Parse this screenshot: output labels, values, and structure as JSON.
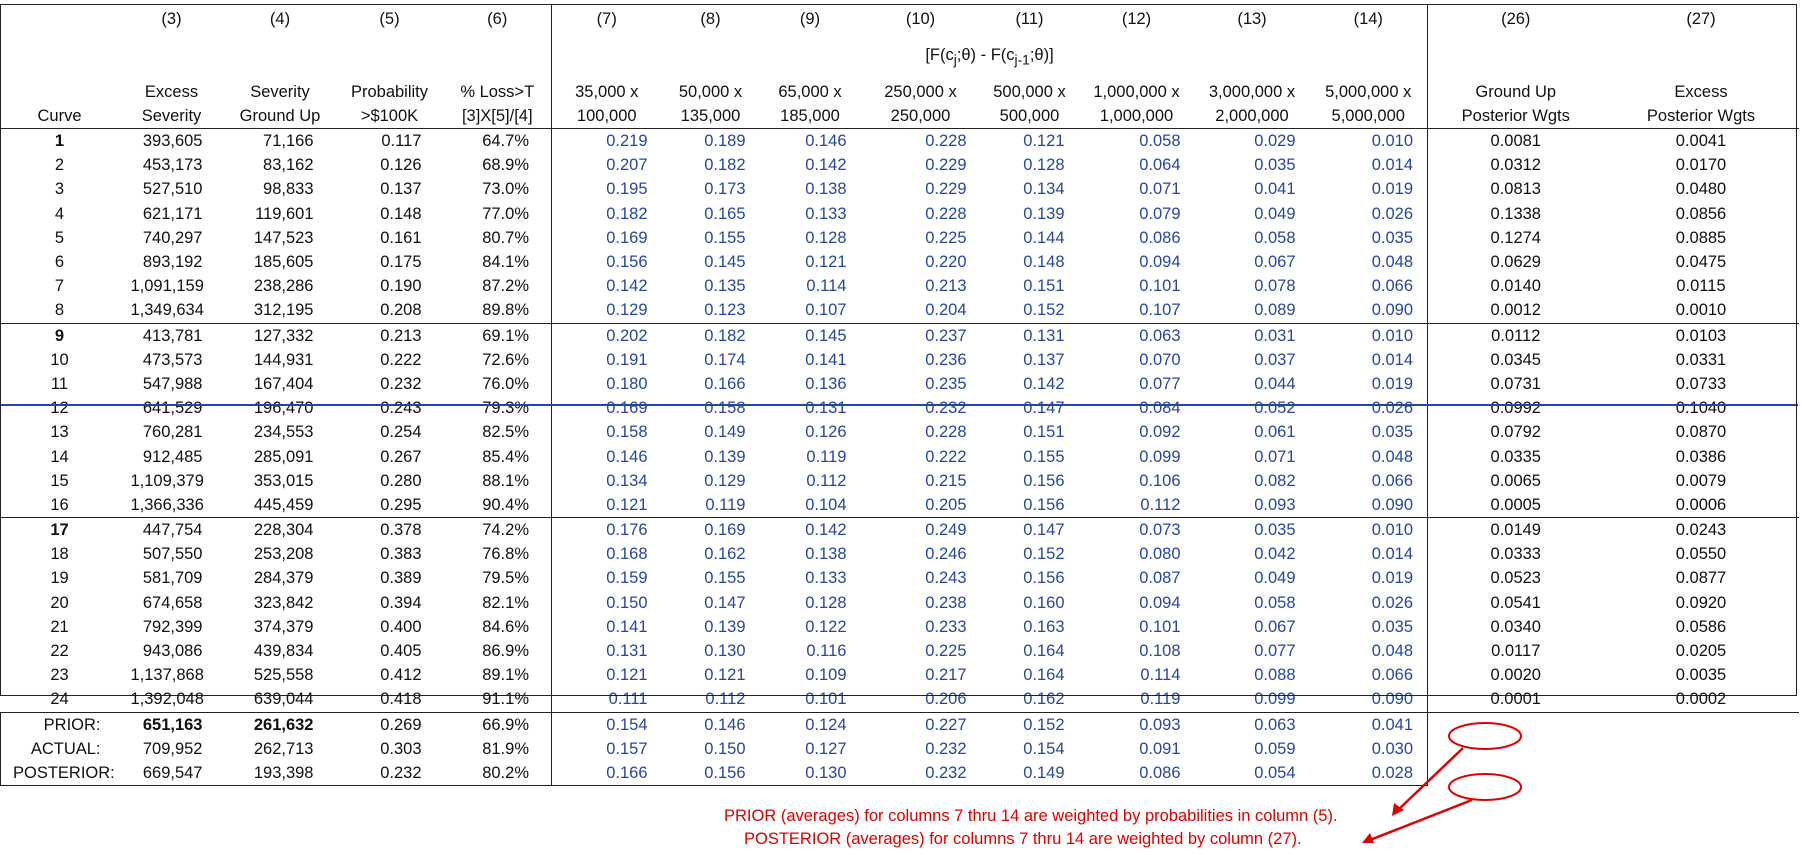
{
  "col_numbers": [
    "(3)",
    "(4)",
    "(5)",
    "(6)",
    "(7)",
    "(8)",
    "(9)",
    "(10)",
    "(11)",
    "(12)",
    "(13)",
    "(14)",
    "(26)",
    "(27)"
  ],
  "formula": "[F(c<sub>j</sub>;θ) - F(c<sub>j-1</sub>;θ)]",
  "formula_text": "[F(cj;θ) - F(cj-1;θ)]",
  "header_line1": [
    "",
    "Excess",
    "Severity",
    "Probability",
    "% Loss>T",
    "35,000 x",
    "50,000 x",
    "65,000 x",
    "250,000 x",
    "500,000 x",
    "1,000,000 x",
    "3,000,000 x",
    "5,000,000 x",
    "Ground Up",
    "Excess"
  ],
  "header_line2": [
    "Curve",
    "Severity",
    "Ground Up",
    ">$100K",
    "[3]X[5]/[4]",
    "100,000",
    "135,000",
    "185,000",
    "250,000",
    "500,000",
    "1,000,000",
    "2,000,000",
    "5,000,000",
    "Posterior Wgts",
    "Posterior Wgts"
  ],
  "rows": [
    [
      "1",
      "393,605",
      "71,166",
      "0.117",
      "64.7%",
      "0.219",
      "0.189",
      "0.146",
      "0.228",
      "0.121",
      "0.058",
      "0.029",
      "0.010",
      "0.0081",
      "0.0041"
    ],
    [
      "2",
      "453,173",
      "83,162",
      "0.126",
      "68.9%",
      "0.207",
      "0.182",
      "0.142",
      "0.229",
      "0.128",
      "0.064",
      "0.035",
      "0.014",
      "0.0312",
      "0.0170"
    ],
    [
      "3",
      "527,510",
      "98,833",
      "0.137",
      "73.0%",
      "0.195",
      "0.173",
      "0.138",
      "0.229",
      "0.134",
      "0.071",
      "0.041",
      "0.019",
      "0.0813",
      "0.0480"
    ],
    [
      "4",
      "621,171",
      "119,601",
      "0.148",
      "77.0%",
      "0.182",
      "0.165",
      "0.133",
      "0.228",
      "0.139",
      "0.079",
      "0.049",
      "0.026",
      "0.1338",
      "0.0856"
    ],
    [
      "5",
      "740,297",
      "147,523",
      "0.161",
      "80.7%",
      "0.169",
      "0.155",
      "0.128",
      "0.225",
      "0.144",
      "0.086",
      "0.058",
      "0.035",
      "0.1274",
      "0.0885"
    ],
    [
      "6",
      "893,192",
      "185,605",
      "0.175",
      "84.1%",
      "0.156",
      "0.145",
      "0.121",
      "0.220",
      "0.148",
      "0.094",
      "0.067",
      "0.048",
      "0.0629",
      "0.0475"
    ],
    [
      "7",
      "1,091,159",
      "238,286",
      "0.190",
      "87.2%",
      "0.142",
      "0.135",
      "0.114",
      "0.213",
      "0.151",
      "0.101",
      "0.078",
      "0.066",
      "0.0140",
      "0.0115"
    ],
    [
      "8",
      "1,349,634",
      "312,195",
      "0.208",
      "89.8%",
      "0.129",
      "0.123",
      "0.107",
      "0.204",
      "0.152",
      "0.107",
      "0.089",
      "0.090",
      "0.0012",
      "0.0010"
    ],
    [
      "9",
      "413,781",
      "127,332",
      "0.213",
      "69.1%",
      "0.202",
      "0.182",
      "0.145",
      "0.237",
      "0.131",
      "0.063",
      "0.031",
      "0.010",
      "0.0112",
      "0.0103"
    ],
    [
      "10",
      "473,573",
      "144,931",
      "0.222",
      "72.6%",
      "0.191",
      "0.174",
      "0.141",
      "0.236",
      "0.137",
      "0.070",
      "0.037",
      "0.014",
      "0.0345",
      "0.0331"
    ],
    [
      "11",
      "547,988",
      "167,404",
      "0.232",
      "76.0%",
      "0.180",
      "0.166",
      "0.136",
      "0.235",
      "0.142",
      "0.077",
      "0.044",
      "0.019",
      "0.0731",
      "0.0733"
    ],
    [
      "12",
      "641,529",
      "196,470",
      "0.243",
      "79.3%",
      "0.169",
      "0.158",
      "0.131",
      "0.232",
      "0.147",
      "0.084",
      "0.052",
      "0.026",
      "0.0992",
      "0.1040"
    ],
    [
      "13",
      "760,281",
      "234,553",
      "0.254",
      "82.5%",
      "0.158",
      "0.149",
      "0.126",
      "0.228",
      "0.151",
      "0.092",
      "0.061",
      "0.035",
      "0.0792",
      "0.0870"
    ],
    [
      "14",
      "912,485",
      "285,091",
      "0.267",
      "85.4%",
      "0.146",
      "0.139",
      "0.119",
      "0.222",
      "0.155",
      "0.099",
      "0.071",
      "0.048",
      "0.0335",
      "0.0386"
    ],
    [
      "15",
      "1,109,379",
      "353,015",
      "0.280",
      "88.1%",
      "0.134",
      "0.129",
      "0.112",
      "0.215",
      "0.156",
      "0.106",
      "0.082",
      "0.066",
      "0.0065",
      "0.0079"
    ],
    [
      "16",
      "1,366,336",
      "445,459",
      "0.295",
      "90.4%",
      "0.121",
      "0.119",
      "0.104",
      "0.205",
      "0.156",
      "0.112",
      "0.093",
      "0.090",
      "0.0005",
      "0.0006"
    ],
    [
      "17",
      "447,754",
      "228,304",
      "0.378",
      "74.2%",
      "0.176",
      "0.169",
      "0.142",
      "0.249",
      "0.147",
      "0.073",
      "0.035",
      "0.010",
      "0.0149",
      "0.0243"
    ],
    [
      "18",
      "507,550",
      "253,208",
      "0.383",
      "76.8%",
      "0.168",
      "0.162",
      "0.138",
      "0.246",
      "0.152",
      "0.080",
      "0.042",
      "0.014",
      "0.0333",
      "0.0550"
    ],
    [
      "19",
      "581,709",
      "284,379",
      "0.389",
      "79.5%",
      "0.159",
      "0.155",
      "0.133",
      "0.243",
      "0.156",
      "0.087",
      "0.049",
      "0.019",
      "0.0523",
      "0.0877"
    ],
    [
      "20",
      "674,658",
      "323,842",
      "0.394",
      "82.1%",
      "0.150",
      "0.147",
      "0.128",
      "0.238",
      "0.160",
      "0.094",
      "0.058",
      "0.026",
      "0.0541",
      "0.0920"
    ],
    [
      "21",
      "792,399",
      "374,379",
      "0.400",
      "84.6%",
      "0.141",
      "0.139",
      "0.122",
      "0.233",
      "0.163",
      "0.101",
      "0.067",
      "0.035",
      "0.0340",
      "0.0586"
    ],
    [
      "22",
      "943,086",
      "439,834",
      "0.405",
      "86.9%",
      "0.131",
      "0.130",
      "0.116",
      "0.225",
      "0.164",
      "0.108",
      "0.077",
      "0.048",
      "0.0117",
      "0.0205"
    ],
    [
      "23",
      "1,137,868",
      "525,558",
      "0.412",
      "89.1%",
      "0.121",
      "0.121",
      "0.109",
      "0.217",
      "0.164",
      "0.114",
      "0.088",
      "0.066",
      "0.0020",
      "0.0035"
    ],
    [
      "24",
      "1,392,048",
      "639,044",
      "0.418",
      "91.1%",
      "0.111",
      "0.112",
      "0.101",
      "0.206",
      "0.162",
      "0.119",
      "0.099",
      "0.090",
      "0.0001",
      "0.0002"
    ]
  ],
  "summary": [
    [
      "PRIOR:",
      "651,163",
      "261,632",
      "0.269",
      "66.9%",
      "0.154",
      "0.146",
      "0.124",
      "0.227",
      "0.152",
      "0.093",
      "0.063",
      "0.041"
    ],
    [
      "ACTUAL:",
      "709,952",
      "262,713",
      "0.303",
      "81.9%",
      "0.157",
      "0.150",
      "0.127",
      "0.232",
      "0.154",
      "0.091",
      "0.059",
      "0.030"
    ],
    [
      "POSTERIOR:",
      "669,547",
      "193,398",
      "0.232",
      "80.2%",
      "0.166",
      "0.156",
      "0.130",
      "0.232",
      "0.149",
      "0.086",
      "0.054",
      "0.028"
    ]
  ],
  "bold_curves": [
    "1",
    "9",
    "17"
  ],
  "notes": {
    "prior": "PRIOR (averages) for columns 7 thru 14 are weighted by probabilities in column (5).",
    "posterior": "POSTERIOR (averages) for columns 7 thru 14 are weighted by column (27)."
  },
  "colors": {
    "blue": "#2746a0",
    "red": "#e00000",
    "text": "#111111"
  }
}
